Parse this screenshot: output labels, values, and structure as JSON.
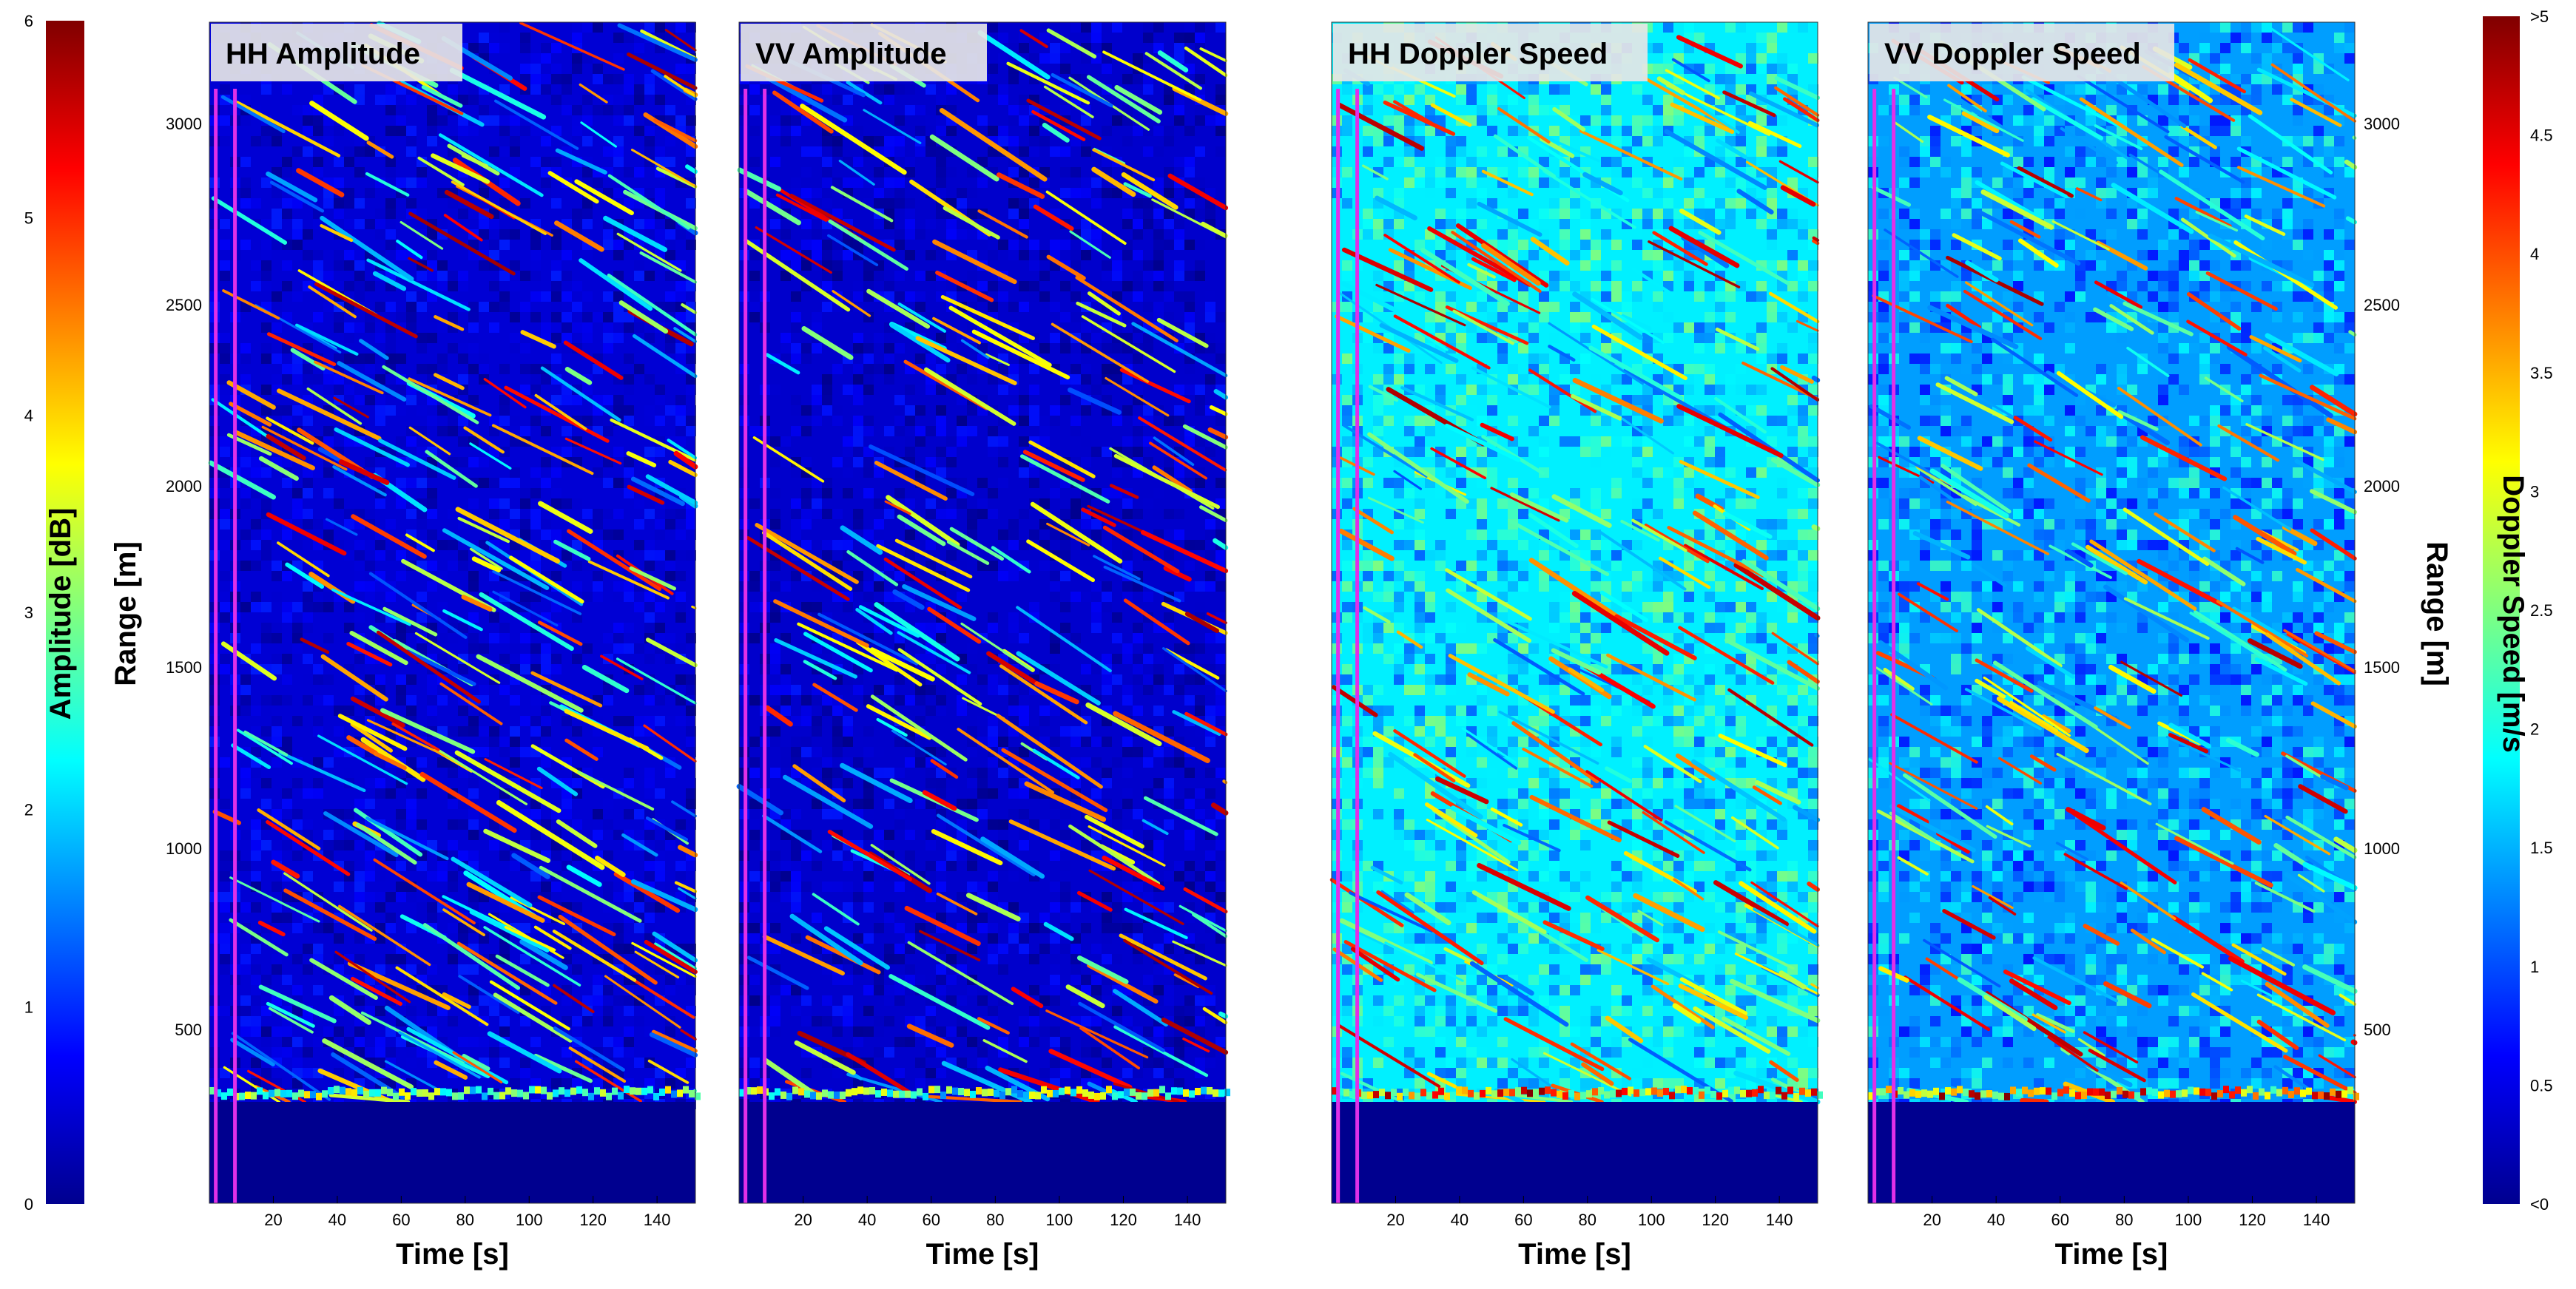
{
  "chart_data": [
    {
      "type": "heatmap",
      "title": "HH Amplitude",
      "xlabel": "Time [s]",
      "ylabel": "Range [m]",
      "x_ticks": [
        20,
        40,
        60,
        80,
        100,
        120,
        140
      ],
      "y_ticks": [
        500,
        1000,
        1500,
        2000,
        2500,
        3000
      ],
      "xlim": [
        0,
        152
      ],
      "ylim": [
        0,
        3270
      ],
      "colorbar": "amplitude",
      "background_level": 0.5,
      "streak_density": 1.2
    },
    {
      "type": "heatmap",
      "title": "VV Amplitude",
      "xlabel": "Time [s]",
      "ylabel": "",
      "x_ticks": [
        20,
        40,
        60,
        80,
        100,
        120,
        140
      ],
      "y_ticks": [],
      "xlim": [
        0,
        152
      ],
      "ylim": [
        0,
        3270
      ],
      "colorbar": "amplitude",
      "background_level": 0.45,
      "streak_density": 1.0
    },
    {
      "type": "heatmap",
      "title": "HH Doppler Speed",
      "xlabel": "Time [s]",
      "ylabel": "",
      "x_ticks": [
        20,
        40,
        60,
        80,
        100,
        120,
        140
      ],
      "y_ticks": [],
      "xlim": [
        0,
        152
      ],
      "ylim": [
        0,
        3270
      ],
      "colorbar": "doppler",
      "background_level": 1.8,
      "streak_density": 1.0
    },
    {
      "type": "heatmap",
      "title": "VV Doppler Speed",
      "xlabel": "Time [s]",
      "ylabel": "Range [m]",
      "x_ticks": [
        20,
        40,
        60,
        80,
        100,
        120,
        140
      ],
      "y_ticks": [
        500,
        1000,
        1500,
        2000,
        2500,
        3000
      ],
      "xlim": [
        0,
        152
      ],
      "ylim": [
        0,
        3270
      ],
      "colorbar": "doppler",
      "background_level": 1.4,
      "streak_density": 1.0
    }
  ],
  "colorbars": {
    "amplitude": {
      "label": "Amplitude [dB]",
      "range": [
        0,
        6
      ],
      "ticks": [
        "0",
        "1",
        "2",
        "3",
        "4",
        "5",
        "6"
      ]
    },
    "doppler": {
      "label": "Doppler Speed [m/s",
      "range": [
        0,
        5
      ],
      "ticks": [
        "<0",
        "0.5",
        "1",
        "1.5",
        "2",
        "2.5",
        "3",
        "3.5",
        "4",
        "4.5",
        ">5"
      ]
    }
  },
  "colors": {
    "marker_line": "#e030e8",
    "background_fill": "#00008f",
    "title_box": "#e6e6e6"
  }
}
